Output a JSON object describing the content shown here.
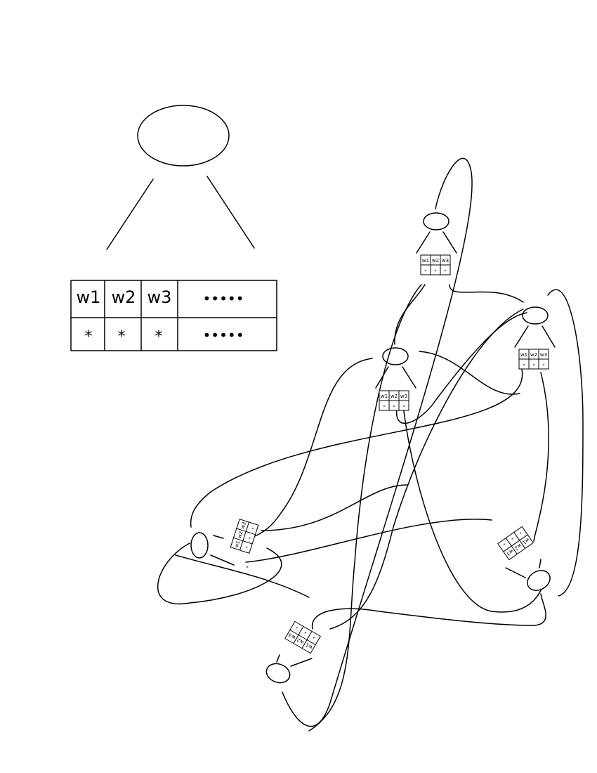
{
  "legend": {
    "header_cells": [
      "w1",
      "w2",
      "w3",
      "•••••"
    ],
    "value_cells": [
      "*",
      "*",
      "*",
      "•••••"
    ]
  },
  "node_table": {
    "header_cells": [
      "w1",
      "w2",
      "w3"
    ],
    "value_cells": [
      "*",
      "*",
      "*"
    ]
  },
  "colors": {
    "ink": "#000000",
    "background": "#ffffff"
  }
}
